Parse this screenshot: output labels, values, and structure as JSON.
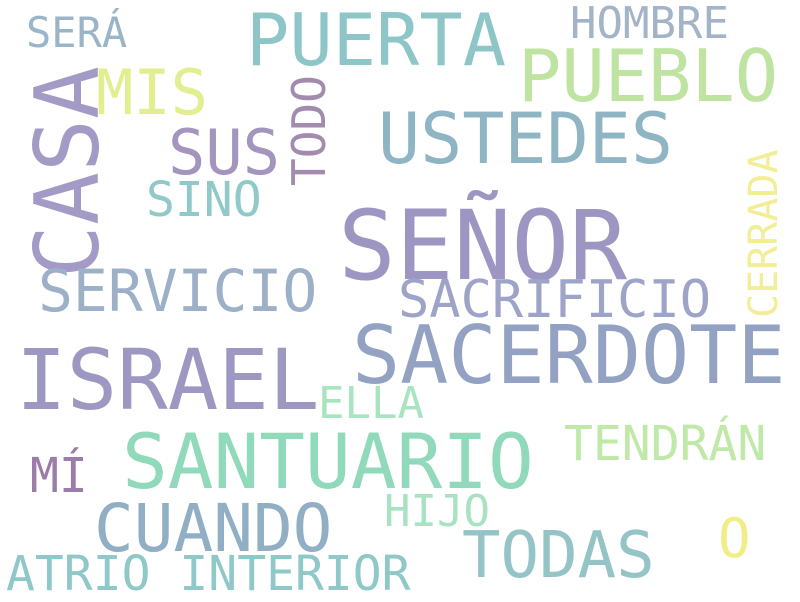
{
  "words": [
    {
      "text": "SEÑOR",
      "color": "#9d96c2"
    },
    {
      "text": "SACERDOTE",
      "color": "#93a2c2"
    },
    {
      "text": "ISRAEL",
      "color": "#9d98c2"
    },
    {
      "text": "SANTUARIO",
      "color": "#90d9bb"
    },
    {
      "text": "CASA",
      "color": "#a39bc5"
    },
    {
      "text": "USTEDES",
      "color": "#8fb5c4"
    },
    {
      "text": "PUERTA",
      "color": "#8ec6c7"
    },
    {
      "text": "PUEBLO",
      "color": "#bfe4a2"
    },
    {
      "text": "CUANDO",
      "color": "#90aec4"
    },
    {
      "text": "TODAS",
      "color": "#95c4c7"
    },
    {
      "text": "SERVICIO",
      "color": "#9cb0c8"
    },
    {
      "text": "SACRIFICIO",
      "color": "#9ea3c8"
    },
    {
      "text": "ATRIO INTERIOR",
      "color": "#8fc8c8"
    },
    {
      "text": "TENDRÁN",
      "color": "#c0e8a8"
    },
    {
      "text": "SUS",
      "color": "#a395bd"
    },
    {
      "text": "MIS",
      "color": "#e3ee90"
    },
    {
      "text": "HOMBRE",
      "color": "#a3b3c8"
    },
    {
      "text": "SERÁ",
      "color": "#9bb5c8"
    },
    {
      "text": "SINO",
      "color": "#8fc9c8"
    },
    {
      "text": "ELLA",
      "color": "#a8e4c0"
    },
    {
      "text": "HIJO",
      "color": "#a8e2c2"
    },
    {
      "text": "MÍ",
      "color": "#9c7ca8"
    },
    {
      "text": "O",
      "color": "#f1ee88"
    },
    {
      "text": "TODO",
      "color": "#a38bb0"
    },
    {
      "text": "CERRADA",
      "color": "#f1ee96"
    }
  ]
}
